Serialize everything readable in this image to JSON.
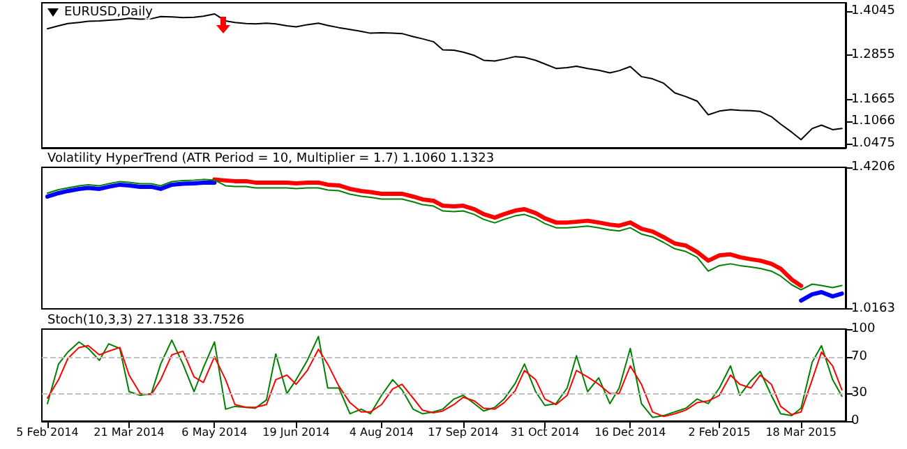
{
  "chart_data": [
    {
      "type": "line",
      "title": "EURUSD,Daily",
      "tick_labels": "y",
      "x": [
        "2014-02-05",
        "2014-02-11",
        "2014-02-16",
        "2014-02-22",
        "2014-02-27",
        "2014-03-05",
        "2014-03-10",
        "2014-03-16",
        "2014-03-21",
        "2014-03-27",
        "2014-04-02",
        "2014-04-07",
        "2014-04-13",
        "2014-04-19",
        "2014-04-25",
        "2014-04-30",
        "2014-05-06",
        "2014-05-12",
        "2014-05-17",
        "2014-05-23",
        "2014-05-28",
        "2014-06-03",
        "2014-06-08",
        "2014-06-14",
        "2014-06-19",
        "2014-06-25",
        "2014-07-01",
        "2014-07-06",
        "2014-07-12",
        "2014-07-18",
        "2014-07-24",
        "2014-07-29",
        "2014-08-04",
        "2014-08-10",
        "2014-08-15",
        "2014-08-21",
        "2014-08-26",
        "2014-09-01",
        "2014-09-06",
        "2014-09-12",
        "2014-09-17",
        "2014-09-23",
        "2014-09-28",
        "2014-10-04",
        "2014-10-09",
        "2014-10-15",
        "2014-10-20",
        "2014-10-26",
        "2014-10-31",
        "2014-11-06",
        "2014-11-12",
        "2014-11-17",
        "2014-11-23",
        "2014-11-29",
        "2014-12-05",
        "2014-12-10",
        "2014-12-16",
        "2014-12-22",
        "2014-12-28",
        "2015-01-03",
        "2015-01-09",
        "2015-01-15",
        "2015-01-21",
        "2015-01-27",
        "2015-02-02",
        "2015-02-08",
        "2015-02-13",
        "2015-02-19",
        "2015-02-24",
        "2015-03-02",
        "2015-03-07",
        "2015-03-13",
        "2015-03-18",
        "2015-03-24",
        "2015-03-29",
        "2015-04-04",
        "2015-04-09"
      ],
      "xlim": [
        "2014-02-02",
        "2015-04-11"
      ],
      "ylim": [
        1.036,
        1.427
      ],
      "yticks": [
        1.4045,
        1.2855,
        1.1665,
        1.1066,
        1.0475
      ],
      "series": [
        {
          "color": "#000000",
          "values": [
            1.357,
            1.365,
            1.371,
            1.374,
            1.377,
            1.378,
            1.38,
            1.382,
            1.385,
            1.383,
            1.384,
            1.39,
            1.389,
            1.387,
            1.388,
            1.391,
            1.397,
            1.378,
            1.374,
            1.371,
            1.37,
            1.372,
            1.37,
            1.365,
            1.362,
            1.368,
            1.372,
            1.366,
            1.36,
            1.355,
            1.35,
            1.345,
            1.346,
            1.345,
            1.344,
            1.336,
            1.33,
            1.322,
            1.3,
            1.299,
            1.294,
            1.285,
            1.272,
            1.27,
            1.275,
            1.282,
            1.28,
            1.272,
            1.262,
            1.25,
            1.252,
            1.256,
            1.25,
            1.245,
            1.238,
            1.244,
            1.255,
            1.228,
            1.222,
            1.21,
            1.184,
            1.174,
            1.162,
            1.125,
            1.135,
            1.139,
            1.137,
            1.136,
            1.134,
            1.12,
            1.1,
            1.078,
            1.058,
            1.088,
            1.097,
            1.085,
            1.088
          ]
        }
      ]
    },
    {
      "type": "line",
      "title": "Volatility HyperTrend (ATR Period = 10, Multiplier = 1.7) 1.1060 1.1323",
      "tick_labels": "y",
      "x": [
        "2014-02-05",
        "2014-02-11",
        "2014-02-16",
        "2014-02-22",
        "2014-02-27",
        "2014-03-05",
        "2014-03-10",
        "2014-03-16",
        "2014-03-21",
        "2014-03-27",
        "2014-04-02",
        "2014-04-07",
        "2014-04-13",
        "2014-04-19",
        "2014-04-25",
        "2014-04-30",
        "2014-05-06",
        "2014-05-12",
        "2014-05-17",
        "2014-05-23",
        "2014-05-28",
        "2014-06-03",
        "2014-06-08",
        "2014-06-14",
        "2014-06-19",
        "2014-06-25",
        "2014-07-01",
        "2014-07-06",
        "2014-07-12",
        "2014-07-18",
        "2014-07-24",
        "2014-07-29",
        "2014-08-04",
        "2014-08-10",
        "2014-08-15",
        "2014-08-21",
        "2014-08-26",
        "2014-09-01",
        "2014-09-06",
        "2014-09-12",
        "2014-09-17",
        "2014-09-23",
        "2014-09-28",
        "2014-10-04",
        "2014-10-09",
        "2014-10-15",
        "2014-10-20",
        "2014-10-26",
        "2014-10-31",
        "2014-11-06",
        "2014-11-12",
        "2014-11-17",
        "2014-11-23",
        "2014-11-29",
        "2014-12-05",
        "2014-12-10",
        "2014-12-16",
        "2014-12-22",
        "2014-12-28",
        "2015-01-03",
        "2015-01-09",
        "2015-01-15",
        "2015-01-21",
        "2015-01-27",
        "2015-02-02",
        "2015-02-08",
        "2015-02-13",
        "2015-02-19",
        "2015-02-24",
        "2015-03-02",
        "2015-03-07",
        "2015-03-13",
        "2015-03-18",
        "2015-03-24",
        "2015-03-29",
        "2015-04-04",
        "2015-04-09"
      ],
      "xlim": [
        "2014-02-02",
        "2015-04-11"
      ],
      "ylim": [
        1.0163,
        1.4206
      ],
      "yticks": [
        1.4206,
        1.0163
      ],
      "series": [
        {
          "color": "#0000ff",
          "values": [
            1.337,
            1.347,
            1.353,
            1.359,
            1.362,
            1.359,
            1.365,
            1.371,
            1.369,
            1.365,
            1.365,
            1.359,
            1.371,
            1.374,
            1.375,
            1.377,
            1.377,
            null,
            null,
            null,
            null,
            null,
            null,
            null,
            null,
            null,
            null,
            null,
            null,
            null,
            null,
            null,
            null,
            null,
            null,
            null,
            null,
            null,
            null,
            null,
            null,
            null,
            null,
            null,
            null,
            null,
            null,
            null,
            null,
            null,
            null,
            null,
            null,
            null,
            null,
            null,
            null,
            null,
            null,
            null,
            null,
            null,
            null,
            null,
            null,
            null,
            null,
            null,
            null,
            null,
            null,
            null,
            1.04,
            1.058,
            1.064,
            1.052,
            1.06
          ]
        },
        {
          "color": "#ff0000",
          "values": [
            null,
            null,
            null,
            null,
            null,
            null,
            null,
            null,
            null,
            null,
            null,
            null,
            null,
            null,
            null,
            null,
            1.386,
            1.383,
            1.381,
            1.381,
            1.377,
            1.377,
            1.377,
            1.377,
            1.375,
            1.377,
            1.377,
            1.371,
            1.369,
            1.359,
            1.353,
            1.35,
            1.345,
            1.345,
            1.345,
            1.337,
            1.329,
            1.325,
            1.311,
            1.309,
            1.311,
            1.301,
            1.287,
            1.277,
            1.287,
            1.297,
            1.301,
            1.29,
            1.275,
            1.263,
            1.263,
            1.265,
            1.268,
            1.263,
            1.257,
            1.254,
            1.263,
            1.245,
            1.237,
            1.221,
            1.203,
            1.197,
            1.179,
            1.154,
            1.169,
            1.172,
            1.164,
            1.158,
            1.154,
            1.145,
            1.131,
            1.1,
            1.082,
            null,
            null,
            null,
            null
          ]
        },
        {
          "color": "#008000",
          "values": [
            1.347,
            1.357,
            1.362,
            1.368,
            1.371,
            1.368,
            1.374,
            1.38,
            1.378,
            1.374,
            1.374,
            1.368,
            1.38,
            1.383,
            1.384,
            1.386,
            1.384,
            1.368,
            1.366,
            1.366,
            1.362,
            1.362,
            1.362,
            1.362,
            1.36,
            1.362,
            1.362,
            1.356,
            1.354,
            1.344,
            1.338,
            1.335,
            1.33,
            1.33,
            1.33,
            1.322,
            1.314,
            1.31,
            1.296,
            1.294,
            1.296,
            1.286,
            1.272,
            1.262,
            1.272,
            1.282,
            1.286,
            1.275,
            1.26,
            1.248,
            1.248,
            1.25,
            1.253,
            1.248,
            1.242,
            1.239,
            1.248,
            1.23,
            1.222,
            1.206,
            1.188,
            1.18,
            1.164,
            1.124,
            1.14,
            1.145,
            1.14,
            1.136,
            1.132,
            1.124,
            1.11,
            1.085,
            1.071,
            1.087,
            1.083,
            1.077,
            1.083
          ]
        }
      ]
    },
    {
      "type": "line",
      "title": "Stoch(10,3,3) 27.1318 33.7526",
      "x": [
        "2014-02-05",
        "2014-02-11",
        "2014-02-16",
        "2014-02-22",
        "2014-02-27",
        "2014-03-05",
        "2014-03-10",
        "2014-03-16",
        "2014-03-21",
        "2014-03-27",
        "2014-04-02",
        "2014-04-07",
        "2014-04-13",
        "2014-04-19",
        "2014-04-25",
        "2014-04-30",
        "2014-05-06",
        "2014-05-12",
        "2014-05-17",
        "2014-05-23",
        "2014-05-28",
        "2014-06-03",
        "2014-06-08",
        "2014-06-14",
        "2014-06-19",
        "2014-06-25",
        "2014-07-01",
        "2014-07-06",
        "2014-07-12",
        "2014-07-18",
        "2014-07-24",
        "2014-07-29",
        "2014-08-04",
        "2014-08-10",
        "2014-08-15",
        "2014-08-21",
        "2014-08-26",
        "2014-09-01",
        "2014-09-06",
        "2014-09-12",
        "2014-09-17",
        "2014-09-23",
        "2014-09-28",
        "2014-10-04",
        "2014-10-09",
        "2014-10-15",
        "2014-10-20",
        "2014-10-26",
        "2014-10-31",
        "2014-11-06",
        "2014-11-12",
        "2014-11-17",
        "2014-11-23",
        "2014-11-29",
        "2014-12-05",
        "2014-12-10",
        "2014-12-16",
        "2014-12-22",
        "2014-12-28",
        "2015-01-03",
        "2015-01-09",
        "2015-01-15",
        "2015-01-21",
        "2015-01-27",
        "2015-02-02",
        "2015-02-08",
        "2015-02-13",
        "2015-02-19",
        "2015-02-24",
        "2015-03-02",
        "2015-03-07",
        "2015-03-13",
        "2015-03-18",
        "2015-03-24",
        "2015-03-29",
        "2015-04-04",
        "2015-04-09"
      ],
      "xlim": [
        "2014-02-02",
        "2015-04-11"
      ],
      "xticks": [
        {
          "value": "2014-02-05",
          "label": "5 Feb 2014"
        },
        {
          "value": "2014-03-21",
          "label": "21 Mar 2014"
        },
        {
          "value": "2014-05-06",
          "label": "6 May 2014"
        },
        {
          "value": "2014-06-19",
          "label": "19 Jun 2014"
        },
        {
          "value": "2014-08-04",
          "label": "4 Aug 2014"
        },
        {
          "value": "2014-09-17",
          "label": "17 Sep 2014"
        },
        {
          "value": "2014-10-31",
          "label": "31 Oct 2014"
        },
        {
          "value": "2014-12-16",
          "label": "16 Dec 2014"
        },
        {
          "value": "2015-02-02",
          "label": "2 Feb 2015"
        },
        {
          "value": "2015-03-18",
          "label": "18 Mar 2015"
        }
      ],
      "ylim": [
        0,
        100
      ],
      "yticks": [
        100,
        70,
        30,
        0
      ],
      "ref_lines": [
        {
          "axis": "y",
          "value": 70,
          "color": "#c0c0c0",
          "line_style": "dashed"
        },
        {
          "axis": "y",
          "value": 30,
          "color": "#c0c0c0",
          "line_style": "dashed"
        }
      ],
      "series": [
        {
          "color": "#008000",
          "values": [
            19,
            62,
            75,
            86,
            79,
            66,
            84,
            79,
            32,
            28,
            30,
            62,
            88,
            62,
            32,
            58,
            86,
            13,
            16,
            15,
            14,
            23,
            73,
            30,
            45,
            66,
            92,
            36,
            36,
            8,
            13,
            8,
            28,
            45,
            34,
            13,
            8,
            10,
            13,
            24,
            28,
            19,
            11,
            15,
            24,
            41,
            62,
            32,
            17,
            19,
            36,
            71,
            32,
            47,
            19,
            36,
            79,
            19,
            4,
            6,
            10,
            14,
            24,
            19,
            36,
            60,
            28,
            44,
            54,
            28,
            8,
            6,
            14,
            64,
            82,
            45,
            27
          ]
        },
        {
          "color": "#ff0000",
          "values": [
            25,
            45,
            68,
            80,
            82,
            72,
            76,
            80,
            50,
            30,
            29,
            45,
            72,
            76,
            48,
            42,
            70,
            45,
            18,
            15,
            15,
            18,
            45,
            50,
            40,
            55,
            78,
            62,
            38,
            20,
            10,
            10,
            18,
            35,
            40,
            25,
            12,
            9,
            11,
            18,
            26,
            22,
            14,
            13,
            20,
            33,
            55,
            45,
            24,
            18,
            28,
            55,
            48,
            40,
            30,
            30,
            60,
            40,
            10,
            5,
            8,
            12,
            20,
            22,
            28,
            50,
            40,
            36,
            50,
            40,
            16,
            7,
            10,
            45,
            75,
            60,
            34
          ]
        }
      ]
    }
  ]
}
